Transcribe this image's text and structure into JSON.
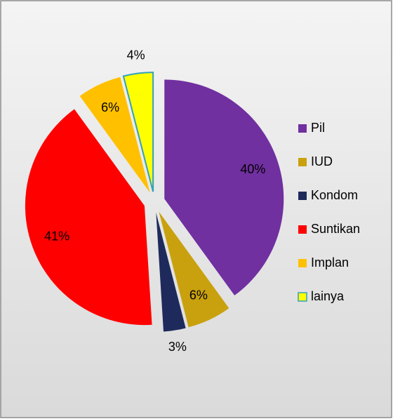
{
  "chart_data": {
    "type": "pie",
    "categories": [
      "Pil",
      "IUD",
      "Kondom",
      "Suntikan",
      "Implan",
      "lainya"
    ],
    "values": [
      40,
      6,
      3,
      41,
      6,
      4
    ],
    "value_labels": [
      "40%",
      "6%",
      "3%",
      "41%",
      "6%",
      "4%"
    ],
    "colors": [
      "#7030a0",
      "#c9a10e",
      "#1f2a5c",
      "#ff0000",
      "#ffc000",
      "#ffff00"
    ],
    "legend": "right"
  }
}
